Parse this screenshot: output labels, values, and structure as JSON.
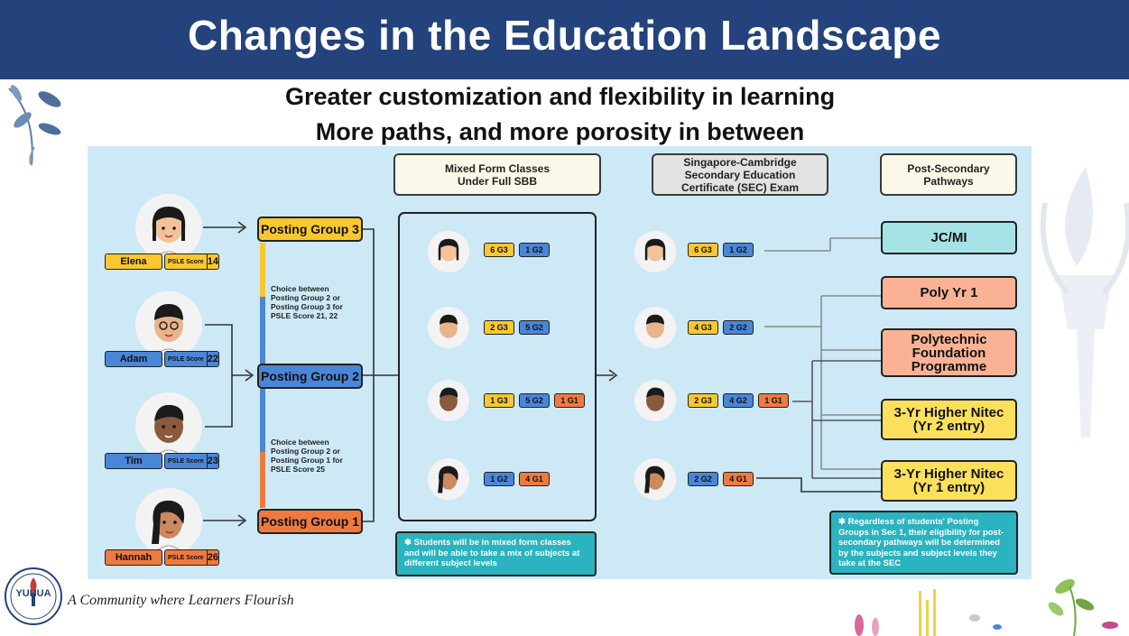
{
  "title": "Changes in the Education Landscape",
  "subtitle1": "Greater customization and flexibility in learning",
  "subtitle2": "More paths, and more porosity in between",
  "col_headers": {
    "mixed": "Mixed Form Classes\nUnder Full SBB",
    "sec": "Singapore-Cambridge\nSecondary Education\nCertificate (SEC) Exam",
    "post": "Post-Secondary\nPathways"
  },
  "students": [
    {
      "name": "Elena",
      "score_label": "PSLE Score",
      "score": "14"
    },
    {
      "name": "Adam",
      "score_label": "PSLE Score",
      "score": "22"
    },
    {
      "name": "Tim",
      "score_label": "PSLE Score",
      "score": "23"
    },
    {
      "name": "Hannah",
      "score_label": "PSLE Score",
      "score": "26"
    }
  ],
  "posting_groups": {
    "pg3": "Posting Group 3",
    "pg2": "Posting Group 2",
    "pg1": "Posting Group 1"
  },
  "choices": {
    "upper": "Choice between\nPosting Group 2 or\nPosting Group 3 for\nPSLE Score 21, 22",
    "lower": "Choice between\nPosting Group 2 or\nPosting Group 1 for\nPSLE Score 25"
  },
  "mixed_chips": [
    [
      "6 G3",
      "1 G2"
    ],
    [
      "2 G3",
      "5 G2"
    ],
    [
      "1 G3",
      "5 G2",
      "1 G1"
    ],
    [
      "1 G2",
      "4 G1"
    ]
  ],
  "sec_chips": [
    [
      "6 G3",
      "1 G2"
    ],
    [
      "4 G3",
      "2 G2"
    ],
    [
      "2 G3",
      "4 G2",
      "1 G1"
    ],
    [
      "2 G2",
      "4 G1"
    ]
  ],
  "pathways": {
    "jc": "JC/MI",
    "poly": "Poly Yr 1",
    "pfp": "Polytechnic\nFoundation\nProgramme",
    "nitec2": "3-Yr Higher Nitec\n(Yr 2 entry)",
    "nitec1": "3-Yr Higher Nitec\n(Yr 1 entry)"
  },
  "notes": {
    "mixed": "Students will be in mixed form classes and will be able to take a mix of subjects at different subject levels",
    "post": "Regardless of students' Posting Groups in Sec 1, their eligibility for post-secondary pathways will be determined by the subjects and subject levels they take at the SEC"
  },
  "footer": {
    "logo_text": "YUHUA",
    "tagline": "A Community where Learners Flourish"
  },
  "colors": {
    "header_bg": "#24427b",
    "panel_bg": "#cde9f6",
    "g3": "#f8c82e",
    "g2": "#4a86d8",
    "g1": "#ef7a3f",
    "jc": "#a6e3e6",
    "poly": "#f9b394",
    "nitec": "#fbe05c",
    "note": "#2bb3c0"
  }
}
